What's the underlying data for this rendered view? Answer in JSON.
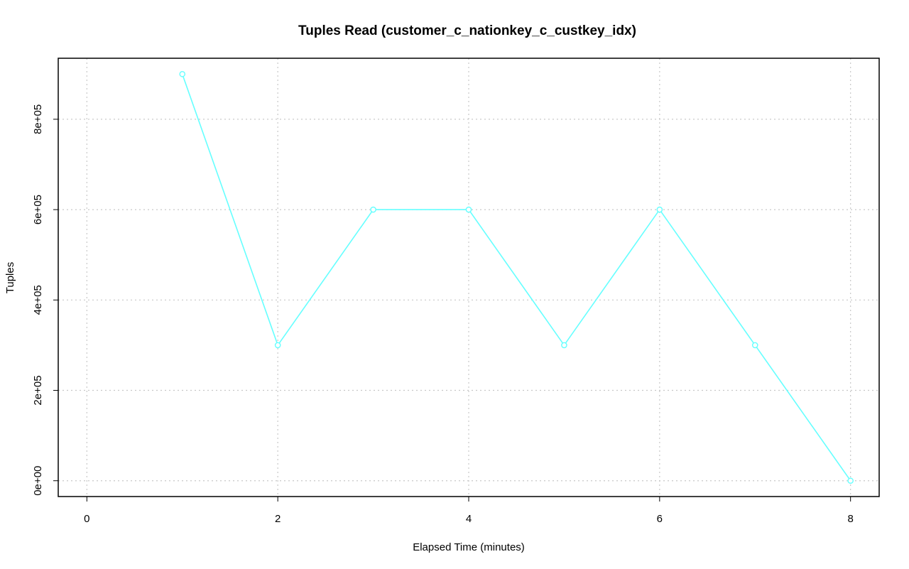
{
  "chart_data": {
    "type": "line",
    "title": "Tuples Read (customer_c_nationkey_c_custkey_idx)",
    "xlabel": "Elapsed Time (minutes)",
    "ylabel": "Tuples",
    "xlim": [
      -0.3,
      8.3
    ],
    "ylim": [
      -35000,
      935000
    ],
    "x_ticks": [
      0,
      2,
      4,
      6,
      8
    ],
    "x_tick_labels": [
      "0",
      "2",
      "4",
      "6",
      "8"
    ],
    "y_ticks": [
      0,
      200000,
      400000,
      600000,
      800000
    ],
    "y_tick_labels": [
      "0e+00",
      "2e+05",
      "4e+05",
      "6e+05",
      "8e+05"
    ],
    "grid": true,
    "series": [
      {
        "x": [
          1,
          2,
          3,
          4,
          5,
          6,
          7,
          8
        ],
        "values": [
          900000,
          300000,
          600000,
          600000,
          300000,
          600000,
          300000,
          0
        ],
        "color": "#66ffff",
        "marker": "open-circle"
      }
    ]
  }
}
